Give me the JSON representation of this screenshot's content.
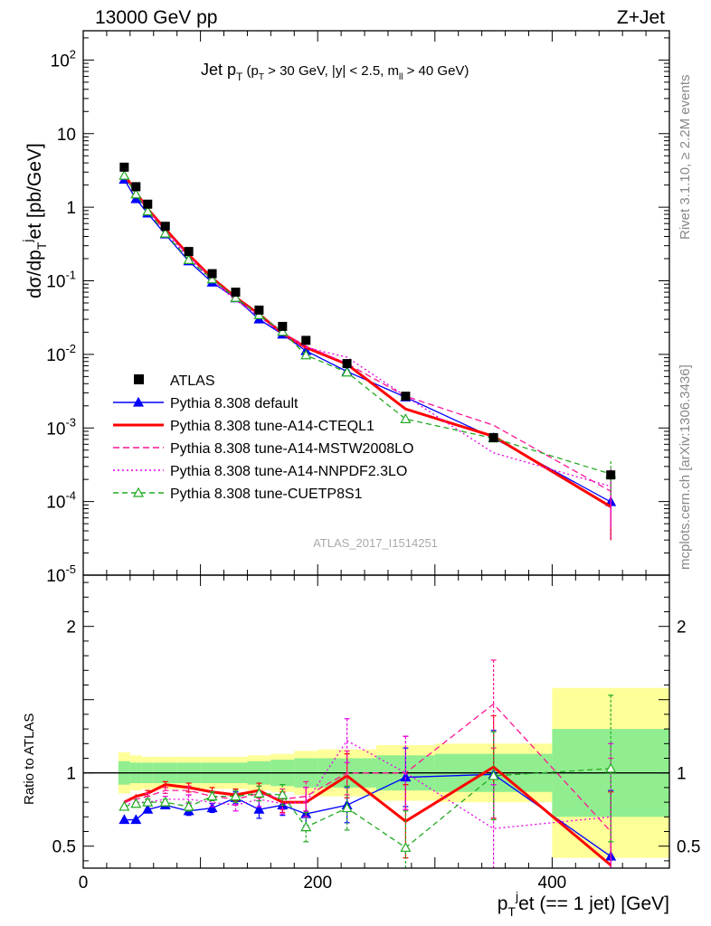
{
  "header": {
    "left": "13000 GeV pp",
    "right": "Z+Jet"
  },
  "side_labels": {
    "rivet": "Rivet 3.1.10, ≥ 2.2M events",
    "mcplots": "mcplots.cern.ch [arXiv:1306.3436]"
  },
  "analysis_id": "ATLAS_2017_I1514251",
  "plot_title": {
    "main": "Jet p",
    "main_sub": "T",
    "cut_open": " (p",
    "cut_sub": "T",
    "cut_mid": " > 30 GeV, |y| < 2.5, m",
    "cut_sub2": "ll",
    "cut_close": " > 40 GeV)"
  },
  "axes": {
    "y_main": {
      "part1": "dσ/dp",
      "sub": "T",
      "sup": "j",
      "part2": "et [pb/GeV]"
    },
    "y_ratio": "Ratio to ATLAS",
    "x": {
      "part1": "p",
      "sub": "T",
      "sup": "j",
      "part2": "et (== 1 jet) [GeV]"
    }
  },
  "legend": [
    {
      "key": "atlas",
      "label": "ATLAS"
    },
    {
      "key": "default",
      "label": "Pythia 8.308 default"
    },
    {
      "key": "cteql1",
      "label": "Pythia 8.308 tune-A14-CTEQL1"
    },
    {
      "key": "mstw",
      "label": "Pythia 8.308 tune-A14-MSTW2008LO"
    },
    {
      "key": "nnpdf",
      "label": "Pythia 8.308 tune-A14-NNPDF2.3LO"
    },
    {
      "key": "cuetp8s1",
      "label": "Pythia 8.308 tune-CUETP8S1"
    }
  ],
  "chart_data": {
    "type": "scatter",
    "x": [
      35,
      45,
      55,
      70,
      90,
      110,
      130,
      150,
      170,
      190,
      225,
      275,
      350,
      450
    ],
    "xlim": [
      0,
      500
    ],
    "x_ticks": [
      0,
      200,
      400
    ],
    "ylim_main": [
      1e-05,
      250
    ],
    "y_scale_main": "log",
    "y_ticks_main": [
      "10^-5",
      "10^-4",
      "10^-3",
      "10^-2",
      "10^-1",
      "1",
      "10",
      "10^2"
    ],
    "ylim_ratio": [
      0.35,
      2.35
    ],
    "y_ticks_ratio": [
      0.5,
      1,
      2
    ],
    "legend_position": "lower-left",
    "data": {
      "name": "ATLAS",
      "values": [
        3.5,
        1.9,
        1.1,
        0.55,
        0.25,
        0.125,
        0.07,
        0.04,
        0.024,
        0.0155,
        0.0075,
        0.0027,
        0.00074,
        0.00023
      ]
    },
    "band_stat": [
      [
        30,
        40,
        0.08
      ],
      [
        40,
        50,
        0.07
      ],
      [
        50,
        60,
        0.07
      ],
      [
        60,
        80,
        0.07
      ],
      [
        80,
        100,
        0.07
      ],
      [
        100,
        120,
        0.07
      ],
      [
        120,
        140,
        0.07
      ],
      [
        140,
        160,
        0.08
      ],
      [
        160,
        180,
        0.09
      ],
      [
        180,
        200,
        0.1
      ],
      [
        200,
        250,
        0.1
      ],
      [
        250,
        300,
        0.12
      ],
      [
        300,
        400,
        0.13
      ],
      [
        400,
        500,
        0.3
      ]
    ],
    "band_total": [
      [
        30,
        40,
        0.14
      ],
      [
        40,
        50,
        0.12
      ],
      [
        50,
        60,
        0.11
      ],
      [
        60,
        80,
        0.11
      ],
      [
        80,
        100,
        0.11
      ],
      [
        100,
        120,
        0.11
      ],
      [
        120,
        140,
        0.11
      ],
      [
        140,
        160,
        0.12
      ],
      [
        160,
        180,
        0.13
      ],
      [
        180,
        200,
        0.15
      ],
      [
        200,
        250,
        0.16
      ],
      [
        250,
        300,
        0.19
      ],
      [
        300,
        400,
        0.2
      ],
      [
        400,
        500,
        0.58
      ]
    ],
    "series": [
      {
        "key": "default",
        "name": "Pythia 8.308 default",
        "color": "#0000ff",
        "dash": "",
        "marker": "triangle-filled",
        "ratio": [
          0.68,
          0.68,
          0.75,
          0.78,
          0.74,
          0.76,
          0.83,
          0.75,
          0.78,
          0.72,
          0.78,
          0.97,
          0.99,
          0.43
        ],
        "ratio_err": [
          0.01,
          0.01,
          0.015,
          0.02,
          0.03,
          0.03,
          0.04,
          0.06,
          0.07,
          0.08,
          0.12,
          0.2,
          0.3,
          0.45
        ]
      },
      {
        "key": "cteql1",
        "name": "Pythia 8.308 tune-A14-CTEQL1",
        "color": "#ff0000",
        "dash": "",
        "marker": "none",
        "width": 3,
        "ratio": [
          0.8,
          0.84,
          0.86,
          0.92,
          0.9,
          0.87,
          0.85,
          0.88,
          0.8,
          0.8,
          0.98,
          0.67,
          1.04,
          0.37
        ],
        "ratio_err": [
          0.01,
          0.015,
          0.02,
          0.02,
          0.03,
          0.03,
          0.04,
          0.05,
          0.07,
          0.1,
          0.15,
          0.25,
          0.35,
          0.5
        ]
      },
      {
        "key": "mstw",
        "name": "Pythia 8.308 tune-A14-MSTW2008LO",
        "color": "#ff1493",
        "dash": "7,4",
        "marker": "none",
        "ratio": [
          0.8,
          0.82,
          0.84,
          0.88,
          0.88,
          0.84,
          0.82,
          0.86,
          0.82,
          0.84,
          1.0,
          1.0,
          1.47,
          0.6
        ],
        "ratio_err": [
          0.01,
          0.015,
          0.02,
          0.02,
          0.03,
          0.03,
          0.04,
          0.05,
          0.07,
          0.1,
          0.15,
          0.25,
          0.3,
          0.5
        ]
      },
      {
        "key": "nnpdf",
        "name": "Pythia 8.308 tune-A14-NNPDF2.3LO",
        "color": "#e600e6",
        "dash": "2,3",
        "marker": "none",
        "ratio": [
          0.78,
          0.8,
          0.8,
          0.82,
          0.82,
          0.8,
          0.78,
          0.82,
          0.79,
          0.8,
          1.22,
          1.0,
          0.62,
          0.7
        ],
        "ratio_err": [
          0.01,
          0.015,
          0.02,
          0.02,
          0.03,
          0.03,
          0.04,
          0.05,
          0.07,
          0.1,
          0.15,
          0.25,
          0.3,
          0.5
        ]
      },
      {
        "key": "cuetp8s1",
        "name": "Pythia 8.308 tune-CUETP8S1",
        "color": "#22aa22",
        "dash": "6,4",
        "marker": "triangle-open",
        "ratio": [
          0.77,
          0.79,
          0.8,
          0.8,
          0.77,
          0.84,
          0.84,
          0.86,
          0.85,
          0.63,
          0.76,
          0.49,
          0.98,
          1.03
        ],
        "ratio_err": [
          0.01,
          0.015,
          0.02,
          0.02,
          0.03,
          0.03,
          0.04,
          0.05,
          0.07,
          0.1,
          0.15,
          0.25,
          0.3,
          0.5
        ]
      }
    ]
  }
}
